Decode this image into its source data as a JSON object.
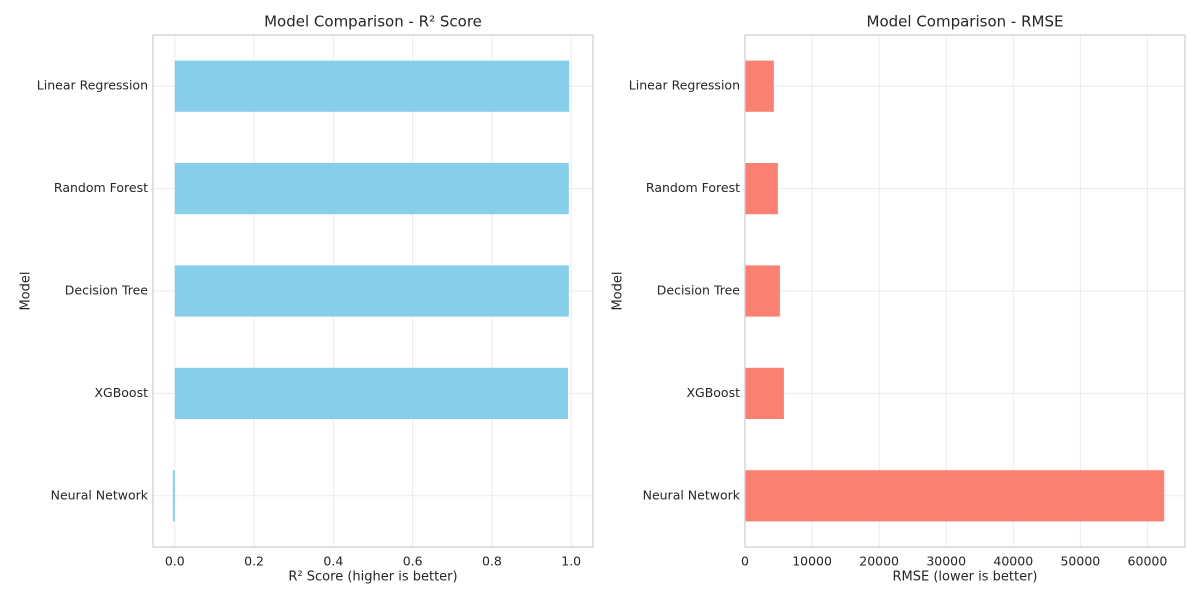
{
  "chart_data": [
    {
      "type": "bar",
      "orientation": "horizontal",
      "title": "Model Comparison - R² Score",
      "xlabel": "R² Score (higher is better)",
      "ylabel": "Model",
      "categories": [
        "Linear Regression",
        "Random Forest",
        "Decision Tree",
        "XGBoost",
        "Neural Network"
      ],
      "values": [
        0.995,
        0.994,
        0.994,
        0.992,
        -0.005
      ],
      "xlim": [
        -0.055,
        1.055
      ],
      "xticks": [
        0.0,
        0.2,
        0.4,
        0.6,
        0.8,
        1.0
      ],
      "xtick_labels": [
        "0.0",
        "0.2",
        "0.4",
        "0.6",
        "0.8",
        "1.0"
      ],
      "color": "#87ceeb",
      "grid": true
    },
    {
      "type": "bar",
      "orientation": "horizontal",
      "title": "Model Comparison - RMSE",
      "xlabel": "RMSE (lower is better)",
      "ylabel": "Model",
      "categories": [
        "Linear Regression",
        "Random Forest",
        "Decision Tree",
        "XGBoost",
        "Neural Network"
      ],
      "values": [
        4300,
        4900,
        5200,
        5800,
        62500
      ],
      "xlim": [
        0,
        65600
      ],
      "xticks": [
        0,
        10000,
        20000,
        30000,
        40000,
        50000,
        60000
      ],
      "xtick_labels": [
        "0",
        "10000",
        "20000",
        "30000",
        "40000",
        "50000",
        "60000"
      ],
      "color": "#fa8072",
      "grid": true
    }
  ]
}
